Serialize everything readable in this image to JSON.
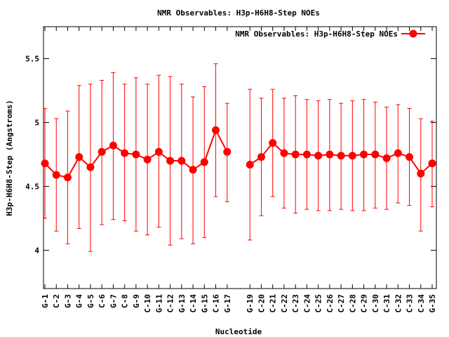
{
  "chart_data": {
    "type": "line",
    "title": "NMR Observables: H3p-H6H8-Step NOEs",
    "xlabel": "Nucleotide",
    "ylabel": "H3p-H6H8-Step (Angstroms)",
    "ylim": [
      3.7,
      5.75
    ],
    "yticks": [
      4,
      4.5,
      5,
      5.5
    ],
    "ytick_labels": [
      "4",
      "4.5",
      "5",
      "5.5"
    ],
    "legend_position": "top-right",
    "grid": false,
    "series_color": "#ff0000",
    "x_tick_labels": [
      "G-1",
      "C-2",
      "G-3",
      "G-4",
      "G-5",
      "C-6",
      "G-7",
      "C-8",
      "G-9",
      "C-10",
      "G-11",
      "C-12",
      "G-13",
      "C-14",
      "G-15",
      "C-16",
      "G-17",
      "G-19",
      "C-20",
      "C-21",
      "C-22",
      "C-23",
      "C-24",
      "C-25",
      "C-26",
      "C-27",
      "C-28",
      "C-29",
      "C-30",
      "C-31",
      "C-32",
      "C-33",
      "C-34",
      "G-35"
    ],
    "series": [
      {
        "name": "NMR Observables: H3p-H6H8-Step NOEs",
        "segments": [
          {
            "x": [
              "G-1",
              "C-2",
              "G-3",
              "G-4",
              "G-5",
              "C-6",
              "G-7",
              "C-8",
              "G-9",
              "C-10",
              "G-11",
              "C-12",
              "G-13",
              "C-14",
              "G-15",
              "C-16",
              "G-17"
            ],
            "y": [
              4.68,
              4.59,
              4.57,
              4.73,
              4.65,
              4.77,
              4.82,
              4.76,
              4.75,
              4.71,
              4.77,
              4.7,
              4.7,
              4.63,
              4.69,
              4.94,
              4.77
            ],
            "low": [
              4.25,
              4.15,
              4.05,
              4.17,
              3.99,
              4.2,
              4.24,
              4.23,
              4.15,
              4.12,
              4.18,
              4.04,
              4.09,
              4.05,
              4.1,
              4.42,
              4.38
            ],
            "high": [
              5.11,
              5.03,
              5.09,
              5.29,
              5.3,
              5.33,
              5.39,
              5.3,
              5.35,
              5.3,
              5.37,
              5.36,
              5.3,
              5.2,
              5.28,
              5.46,
              5.15
            ]
          },
          {
            "x": [
              "G-19",
              "C-20",
              "C-21",
              "C-22",
              "C-23",
              "C-24",
              "C-25",
              "C-26",
              "C-27",
              "C-28",
              "C-29",
              "C-30",
              "C-31",
              "C-32",
              "C-33",
              "C-34",
              "G-35"
            ],
            "y": [
              4.67,
              4.73,
              4.84,
              4.76,
              4.75,
              4.75,
              4.74,
              4.75,
              4.74,
              4.74,
              4.75,
              4.75,
              4.72,
              4.76,
              4.73,
              4.6,
              4.68
            ],
            "low": [
              4.08,
              4.27,
              4.42,
              4.33,
              4.29,
              4.32,
              4.31,
              4.31,
              4.32,
              4.31,
              4.31,
              4.33,
              4.32,
              4.37,
              4.35,
              4.15,
              4.34
            ],
            "high": [
              5.26,
              5.19,
              5.26,
              5.19,
              5.21,
              5.18,
              5.17,
              5.18,
              5.15,
              5.17,
              5.18,
              5.16,
              5.12,
              5.14,
              5.11,
              5.03,
              5.01
            ]
          }
        ]
      }
    ]
  }
}
